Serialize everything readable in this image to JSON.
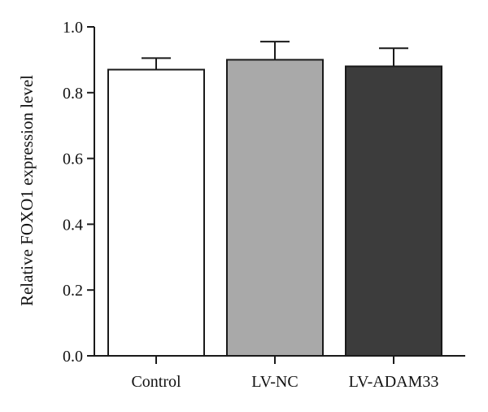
{
  "chart_data": {
    "type": "bar",
    "title": "",
    "xlabel": "",
    "ylabel": "Relative FOXO1 expression level",
    "categories": [
      "Control",
      "LV-NC",
      "LV-ADAM33"
    ],
    "values": [
      0.87,
      0.9,
      0.88
    ],
    "errors": [
      0.035,
      0.055,
      0.055
    ],
    "bar_colors": [
      "#ffffff",
      "#a9a9a9",
      "#3c3c3c"
    ],
    "edge_color": "#1a1a1a",
    "ylim": [
      0.0,
      1.0
    ],
    "yticks": [
      "0.0",
      "0.2",
      "0.4",
      "0.6",
      "0.8",
      "1.0"
    ],
    "ytick_values": [
      0.0,
      0.2,
      0.4,
      0.6,
      0.8,
      1.0
    ],
    "grid": false,
    "legend": "none"
  }
}
